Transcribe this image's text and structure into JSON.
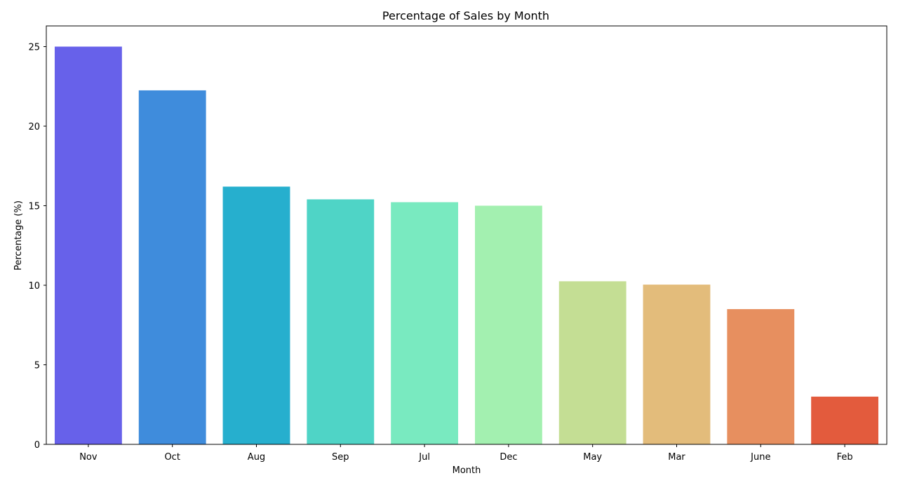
{
  "chart_data": {
    "type": "bar",
    "title": "Percentage of Sales by Month",
    "xlabel": "Month",
    "ylabel": "Percentage (%)",
    "categories": [
      "Nov",
      "Oct",
      "Aug",
      "Sep",
      "Jul",
      "Dec",
      "May",
      "Mar",
      "June",
      "Feb"
    ],
    "values": [
      25.0,
      22.25,
      16.2,
      15.4,
      15.22,
      15.0,
      10.25,
      10.04,
      8.5,
      3.0
    ],
    "colors": [
      "#6761ea",
      "#3f8cdc",
      "#26afce",
      "#4fd4c6",
      "#79eac0",
      "#a3f0b0",
      "#c4de94",
      "#e3bc7b",
      "#e78f5f",
      "#e35b3d"
    ],
    "ylim": [
      0,
      26.3
    ],
    "yticks": [
      0,
      5,
      10,
      15,
      20,
      25
    ],
    "grid": false,
    "legend": "none"
  }
}
